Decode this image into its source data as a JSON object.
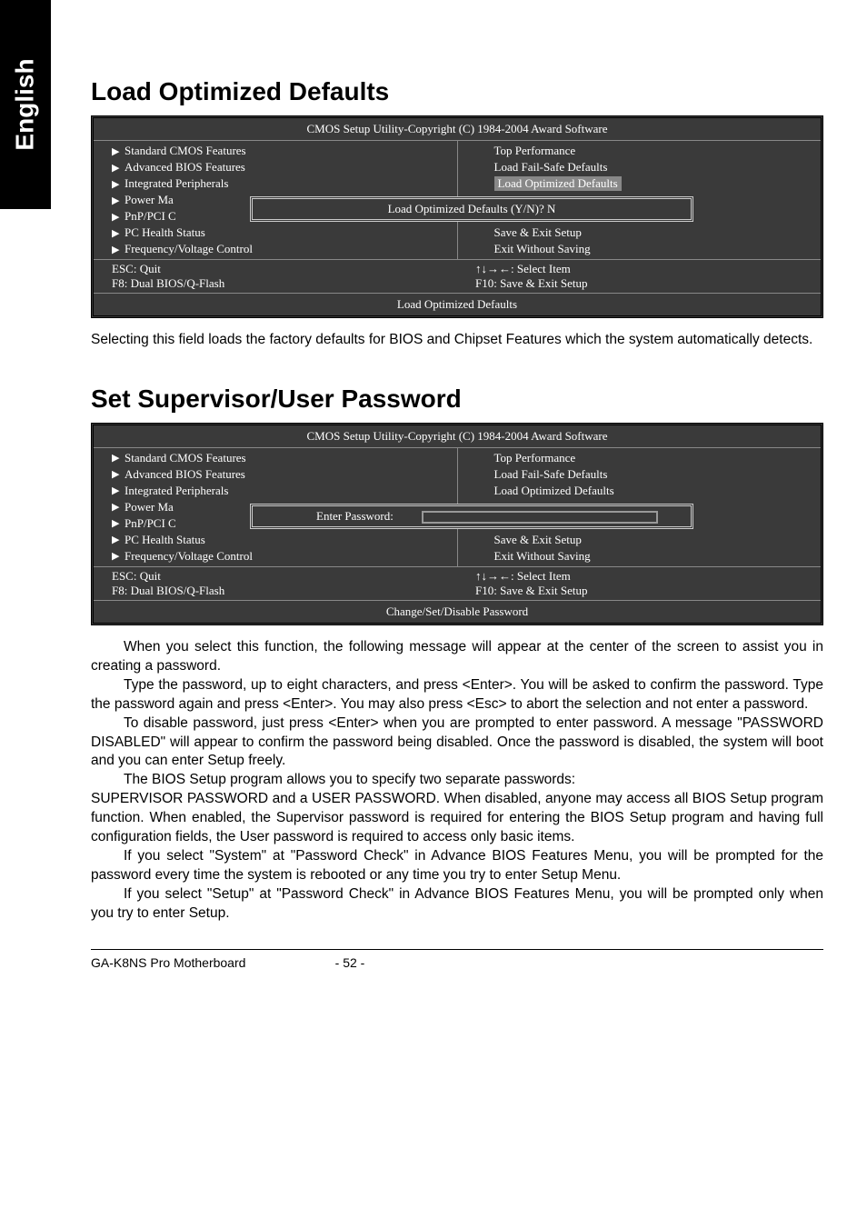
{
  "side_tab": "English",
  "section1": {
    "title": "Load Optimized Defaults",
    "bios": {
      "header": "CMOS Setup Utility-Copyright (C) 1984-2004 Award Software",
      "left": [
        "Standard CMOS Features",
        "Advanced BIOS Features",
        "Integrated Peripherals",
        "Power Ma",
        "PnP/PCI C",
        "PC Health Status",
        "Frequency/Voltage Control"
      ],
      "right": [
        "Top Performance",
        "Load Fail-Safe Defaults",
        "Load Optimized Defaults",
        "",
        "",
        "Save & Exit Setup",
        "Exit Without Saving"
      ],
      "highlight_index": 2,
      "dialog": "Load Optimized Defaults (Y/N)? N",
      "footer_left": [
        "ESC: Quit",
        "F8: Dual BIOS/Q-Flash"
      ],
      "footer_right": [
        "↑↓→←: Select Item",
        "F10: Save & Exit Setup"
      ],
      "hint": "Load Optimized Defaults"
    },
    "desc": "Selecting this field loads the factory defaults for BIOS and Chipset Features which the system automatically detects."
  },
  "section2": {
    "title": "Set Supervisor/User Password",
    "bios": {
      "header": "CMOS Setup Utility-Copyright (C) 1984-2004 Award Software",
      "left": [
        "Standard CMOS Features",
        "Advanced BIOS Features",
        "Integrated Peripherals",
        "Power Ma",
        "PnP/PCI C",
        "PC Health Status",
        "Frequency/Voltage Control"
      ],
      "right": [
        "Top Performance",
        "Load Fail-Safe Defaults",
        "Load Optimized Defaults",
        "",
        "",
        "Save & Exit Setup",
        "Exit Without Saving"
      ],
      "dialog_label": "Enter Password:",
      "footer_left": [
        "ESC: Quit",
        "F8: Dual BIOS/Q-Flash"
      ],
      "footer_right": [
        "↑↓→←: Select Item",
        "F10: Save & Exit Setup"
      ],
      "hint": "Change/Set/Disable Password"
    },
    "paras": [
      "When you select this function, the following message will appear at the center of the screen to assist you in creating a password.",
      "Type the password, up to eight characters, and press <Enter>. You will be asked to confirm the password. Type the password again and press <Enter>. You may also press <Esc> to abort the selection and not enter a password.",
      "To disable password, just press <Enter> when you are prompted to enter password. A message \"PASSWORD DISABLED\" will appear to confirm the password being disabled. Once the password is disabled, the system will boot and you can enter Setup freely.",
      "The BIOS Setup program allows you to specify two separate passwords:",
      "SUPERVISOR PASSWORD and a USER PASSWORD. When disabled, anyone may access all BIOS Setup program function. When enabled, the Supervisor password is required for entering the BIOS Setup program and having full configuration fields, the User password is required to access only basic items.",
      "If you select \"System\" at \"Password Check\" in Advance BIOS Features Menu, you will be prompted for the password every time the system is rebooted or any time you try to enter Setup Menu.",
      "If you select \"Setup\" at \"Password Check\" in Advance BIOS Features Menu, you will be prompted only when you try to enter Setup."
    ],
    "para_indent": [
      true,
      true,
      true,
      true,
      false,
      true,
      true
    ]
  },
  "footer": {
    "left": "GA-K8NS Pro Motherboard",
    "center": "- 52 -"
  },
  "colors": {
    "bios_bg": "#3a3a3a",
    "bios_fg": "#ffffff",
    "highlight_bg": "#888888"
  }
}
